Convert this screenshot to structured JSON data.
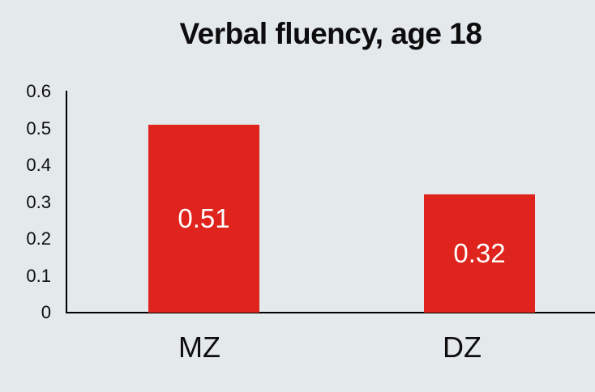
{
  "background_color": "#e4e9eb",
  "chart_data": {
    "type": "bar",
    "title": "Verbal fluency, age 18",
    "categories": [
      "MZ",
      "DZ"
    ],
    "values": [
      0.51,
      0.32
    ],
    "bar_labels": [
      "0.51",
      "0.32"
    ],
    "yticks": [
      "0.6",
      "0.5",
      "0.4",
      "0.3",
      "0.2",
      "0.1",
      "0"
    ],
    "ylim": [
      0,
      0.6
    ],
    "xlabel": "",
    "ylabel": "",
    "grid": false,
    "legend": "none",
    "bar_color": "#de241c",
    "bar_label_color": "#ffffff",
    "axis_color": "#000000",
    "text_color": "#0d0d0d"
  }
}
